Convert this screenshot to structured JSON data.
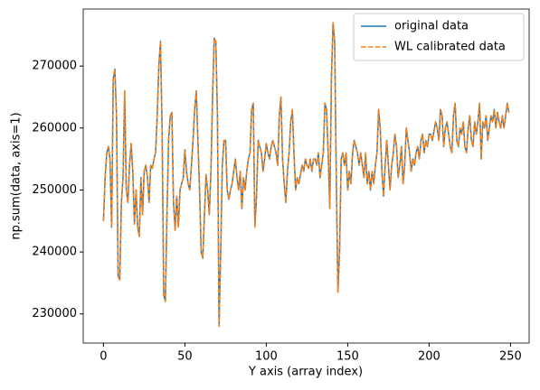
{
  "chart_data": {
    "type": "line",
    "xlabel": "Y axis (array index)",
    "ylabel": "np.sum(data, axis=1)",
    "x": [
      0,
      1,
      2,
      3,
      4,
      5,
      6,
      7,
      8,
      9,
      10,
      11,
      12,
      13,
      14,
      15,
      16,
      17,
      18,
      19,
      20,
      21,
      22,
      23,
      24,
      25,
      26,
      27,
      28,
      29,
      30,
      31,
      32,
      33,
      34,
      35,
      36,
      37,
      38,
      39,
      40,
      41,
      42,
      43,
      44,
      45,
      46,
      47,
      48,
      49,
      50,
      51,
      52,
      53,
      54,
      55,
      56,
      57,
      58,
      59,
      60,
      61,
      62,
      63,
      64,
      65,
      66,
      67,
      68,
      69,
      70,
      71,
      72,
      73,
      74,
      75,
      76,
      77,
      78,
      79,
      80,
      81,
      82,
      83,
      84,
      85,
      86,
      87,
      88,
      89,
      90,
      91,
      92,
      93,
      94,
      95,
      96,
      97,
      98,
      99,
      100,
      101,
      102,
      103,
      104,
      105,
      106,
      107,
      108,
      109,
      110,
      111,
      112,
      113,
      114,
      115,
      116,
      117,
      118,
      119,
      120,
      121,
      122,
      123,
      124,
      125,
      126,
      127,
      128,
      129,
      130,
      131,
      132,
      133,
      134,
      135,
      136,
      137,
      138,
      139,
      140,
      141,
      142,
      143,
      144,
      145,
      146,
      147,
      148,
      149,
      150,
      151,
      152,
      153,
      154,
      155,
      156,
      157,
      158,
      159,
      160,
      161,
      162,
      163,
      164,
      165,
      166,
      167,
      168,
      169,
      170,
      171,
      172,
      173,
      174,
      175,
      176,
      177,
      178,
      179,
      180,
      181,
      182,
      183,
      184,
      185,
      186,
      187,
      188,
      189,
      190,
      191,
      192,
      193,
      194,
      195,
      196,
      197,
      198,
      199,
      200,
      201,
      202,
      203,
      204,
      205,
      206,
      207,
      208,
      209,
      210,
      211,
      212,
      213,
      214,
      215,
      216,
      217,
      218,
      219,
      220,
      221,
      222,
      223,
      224,
      225,
      226,
      227,
      228,
      229,
      230,
      231,
      232,
      233,
      234,
      235,
      236,
      237,
      238,
      239,
      240,
      241,
      242,
      243,
      244,
      245,
      246,
      247,
      248,
      249
    ],
    "series": [
      {
        "name": "original data",
        "color": "#1f77b4",
        "dash": false,
        "values": [
          245000,
          252000,
          256000,
          257000,
          255000,
          244000,
          268000,
          269500,
          262000,
          236000,
          235500,
          248000,
          252000,
          266000,
          250000,
          248000,
          254000,
          257500,
          253000,
          244500,
          250000,
          244000,
          242500,
          252000,
          246000,
          253000,
          254000,
          252000,
          248000,
          254000,
          253500,
          255000,
          256000,
          262000,
          270000,
          274000,
          260000,
          233000,
          232000,
          246000,
          258000,
          262000,
          262500,
          248000,
          243500,
          249000,
          244000,
          250000,
          251000,
          252000,
          256500,
          253000,
          251000,
          250000,
          254000,
          258000,
          263000,
          266000,
          258000,
          250000,
          240000,
          239000,
          246000,
          252500,
          250000,
          246000,
          253000,
          265000,
          274500,
          274000,
          262000,
          228000,
          240000,
          254000,
          258000,
          258000,
          250000,
          248500,
          250000,
          251000,
          253000,
          255000,
          252000,
          250000,
          253000,
          247000,
          252000,
          250000,
          253000,
          255000,
          256000,
          263000,
          264000,
          244000,
          249000,
          258000,
          257000,
          256000,
          253000,
          255000,
          257500,
          256000,
          255000,
          257000,
          258000,
          257000,
          256000,
          254000,
          262000,
          265000,
          255000,
          251000,
          248000,
          253000,
          256000,
          261000,
          263000,
          256000,
          250000,
          252000,
          251000,
          252500,
          254000,
          253000,
          255000,
          254000,
          253500,
          255000,
          253000,
          255000,
          255000,
          254000,
          256000,
          252000,
          254000,
          256000,
          264000,
          263000,
          256000,
          247000,
          268000,
          277000,
          274000,
          252000,
          233500,
          240000,
          255000,
          256000,
          254000,
          256000,
          250000,
          253000,
          251000,
          256000,
          258000,
          257000,
          256000,
          254000,
          256000,
          254000,
          252000,
          256000,
          251000,
          253000,
          250000,
          253000,
          251000,
          254000,
          256000,
          263000,
          260000,
          253000,
          249000,
          254000,
          258000,
          254000,
          250000,
          254000,
          256000,
          259000,
          257000,
          252000,
          254000,
          257000,
          251000,
          254000,
          260000,
          258000,
          256000,
          253000,
          255000,
          254000,
          256000,
          257000,
          255000,
          258000,
          259000,
          256000,
          258000,
          257000,
          259000,
          259000,
          258000,
          259500,
          261000,
          260000,
          258000,
          263000,
          262000,
          257000,
          260000,
          261000,
          259000,
          257000,
          256000,
          262000,
          264000,
          258000,
          257000,
          260000,
          259000,
          261000,
          257000,
          256000,
          260000,
          262000,
          258000,
          257000,
          261000,
          259000,
          261000,
          264000,
          255000,
          261000,
          260000,
          262000,
          258000,
          260000,
          262000,
          261000,
          263000,
          260000,
          262500,
          261000,
          260000,
          262000,
          260000,
          262000,
          264000,
          262500
        ]
      },
      {
        "name": "WL calibrated data",
        "color": "#ff7f0e",
        "dash": true,
        "values": [
          245000,
          252000,
          256000,
          257000,
          255000,
          244000,
          268000,
          269500,
          262000,
          236000,
          235500,
          248000,
          252000,
          266000,
          250000,
          248000,
          254000,
          257500,
          253000,
          244500,
          250000,
          244000,
          242500,
          252000,
          246000,
          253000,
          254000,
          252000,
          248000,
          254000,
          253500,
          255000,
          256000,
          262000,
          270000,
          274000,
          260000,
          233000,
          232000,
          246000,
          258000,
          262000,
          262500,
          248000,
          243500,
          249000,
          244000,
          250000,
          251000,
          252000,
          256500,
          253000,
          251000,
          250000,
          254000,
          258000,
          263000,
          266000,
          258000,
          250000,
          240000,
          239000,
          246000,
          252500,
          250000,
          246000,
          253000,
          265000,
          274500,
          274000,
          262000,
          228000,
          240000,
          254000,
          258000,
          258000,
          250000,
          248500,
          250000,
          251000,
          253000,
          255000,
          252000,
          250000,
          253000,
          247000,
          252000,
          250000,
          253000,
          255000,
          256000,
          263000,
          264000,
          244000,
          249000,
          258000,
          257000,
          256000,
          253000,
          255000,
          257500,
          256000,
          255000,
          257000,
          258000,
          257000,
          256000,
          254000,
          262000,
          265000,
          255000,
          251000,
          248000,
          253000,
          256000,
          261000,
          263000,
          256000,
          250000,
          252000,
          251000,
          252500,
          254000,
          253000,
          255000,
          254000,
          253500,
          255000,
          253000,
          255000,
          255000,
          254000,
          256000,
          252000,
          254000,
          256000,
          264000,
          263000,
          256000,
          247000,
          268000,
          277000,
          274000,
          252000,
          233500,
          240000,
          255000,
          256000,
          254000,
          256000,
          250000,
          253000,
          251000,
          256000,
          258000,
          257000,
          256000,
          254000,
          256000,
          254000,
          252000,
          256000,
          251000,
          253000,
          250000,
          253000,
          251000,
          254000,
          256000,
          263000,
          260000,
          253000,
          249000,
          254000,
          258000,
          254000,
          250000,
          254000,
          256000,
          259000,
          257000,
          252000,
          254000,
          257000,
          251000,
          254000,
          260000,
          258000,
          256000,
          253000,
          255000,
          254000,
          256000,
          257000,
          255000,
          258000,
          259000,
          256000,
          258000,
          257000,
          259000,
          259000,
          258000,
          259500,
          261000,
          260000,
          258000,
          263000,
          262000,
          257000,
          260000,
          261000,
          259000,
          257000,
          256000,
          262000,
          264000,
          258000,
          257000,
          260000,
          259000,
          261000,
          257000,
          256000,
          260000,
          262000,
          258000,
          257000,
          261000,
          259000,
          261000,
          264000,
          255000,
          261000,
          260000,
          262000,
          258000,
          260000,
          262000,
          261000,
          263000,
          260000,
          262500,
          261000,
          260000,
          262000,
          260000,
          262000,
          264000,
          262500
        ]
      }
    ],
    "xlim": [
      -12.45,
      261.45
    ],
    "xticks": [
      0,
      50,
      100,
      150,
      200,
      250
    ],
    "ylim": [
      225300,
      279200
    ],
    "yticks": [
      230000,
      240000,
      250000,
      260000,
      270000
    ],
    "legend": "upper right",
    "grid": false
  }
}
